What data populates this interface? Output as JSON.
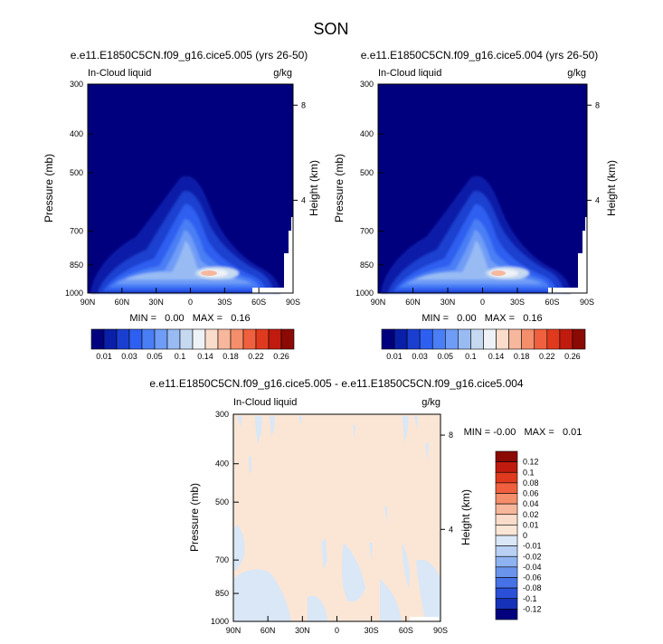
{
  "page": {
    "title": "SON"
  },
  "panels": [
    {
      "title": "e.e11.E1850C5CN.f09_g16.cice5.005 (yrs 26-50)",
      "left_label": "In-Cloud liquid",
      "right_label": "g/kg",
      "stats": "MIN =   0.00   MAX =   0.16",
      "ylabel": "Pressure (mb)",
      "y2label": "Height (km)"
    },
    {
      "title": "e.e11.E1850C5CN.f09_g16.cice5.004 (yrs 26-50)",
      "left_label": "In-Cloud liquid",
      "right_label": "g/kg",
      "stats": "MIN =   0.00   MAX =   0.16",
      "ylabel": "Pressure (mb)",
      "y2label": "Height (km)"
    },
    {
      "title": "e.e11.E1850C5CN.f09_g16.cice5.005 - e.e11.E1850C5CN.f09_g16.cice5.004",
      "left_label": "In-Cloud liquid",
      "right_label": "g/kg",
      "stats": "MIN = -0.00   MAX =   0.01",
      "ylabel": "Pressure (mb)",
      "y2label": "Height (km)"
    }
  ],
  "chart_data": [
    {
      "type": "heatmap",
      "x_ticks": [
        "90N",
        "60N",
        "30N",
        "0",
        "30S",
        "60S",
        "90S"
      ],
      "y_ticks": [
        "300",
        "400",
        "500",
        "700",
        "850",
        "1000"
      ],
      "y_tick_values": [
        300,
        400,
        500,
        700,
        850,
        1000
      ],
      "ylim": [
        300,
        1000
      ],
      "y2_ticks": [
        "8",
        "4"
      ],
      "y2_tick_values": [
        8,
        4
      ],
      "min": 0.0,
      "max": 0.16,
      "colorbar": {
        "orientation": "horizontal",
        "levels": [
          "0.01",
          "0.03",
          "0.05",
          "0.1",
          "0.14",
          "0.18",
          "0.22",
          "0.26"
        ],
        "colors": [
          "#00007f",
          "#0a1fa8",
          "#1a3fd0",
          "#2d5ff0",
          "#4a7ef5",
          "#6f9cf6",
          "#98bbf4",
          "#c5d9f1",
          "#eef2f6",
          "#fadccb",
          "#f7b79c",
          "#f48e6b",
          "#f0603e",
          "#e03a1e",
          "#c01b0e",
          "#8b0a04"
        ]
      }
    },
    {
      "type": "heatmap",
      "x_ticks": [
        "90N",
        "60N",
        "30N",
        "0",
        "30S",
        "60S",
        "90S"
      ],
      "y_ticks": [
        "300",
        "400",
        "500",
        "700",
        "850",
        "1000"
      ],
      "y_tick_values": [
        300,
        400,
        500,
        700,
        850,
        1000
      ],
      "ylim": [
        300,
        1000
      ],
      "y2_ticks": [
        "8",
        "4"
      ],
      "y2_tick_values": [
        8,
        4
      ],
      "min": 0.0,
      "max": 0.16,
      "colorbar": {
        "orientation": "horizontal",
        "levels": [
          "0.01",
          "0.03",
          "0.05",
          "0.1",
          "0.14",
          "0.18",
          "0.22",
          "0.26"
        ],
        "colors": [
          "#00007f",
          "#0a1fa8",
          "#1a3fd0",
          "#2d5ff0",
          "#4a7ef5",
          "#6f9cf6",
          "#98bbf4",
          "#c5d9f1",
          "#eef2f6",
          "#fadccb",
          "#f7b79c",
          "#f48e6b",
          "#f0603e",
          "#e03a1e",
          "#c01b0e",
          "#8b0a04"
        ]
      }
    },
    {
      "type": "heatmap",
      "x_ticks": [
        "90N",
        "60N",
        "30N",
        "0",
        "30S",
        "60S",
        "90S"
      ],
      "y_ticks": [
        "300",
        "400",
        "500",
        "700",
        "850",
        "1000"
      ],
      "y_tick_values": [
        300,
        400,
        500,
        700,
        850,
        1000
      ],
      "ylim": [
        300,
        1000
      ],
      "y2_ticks": [
        "8",
        "4"
      ],
      "y2_tick_values": [
        8,
        4
      ],
      "min": -0.0,
      "max": 0.01,
      "colorbar": {
        "orientation": "vertical",
        "levels": [
          "0.12",
          "0.1",
          "0.08",
          "0.06",
          "0.04",
          "0.02",
          "0.01",
          "0",
          "-0.01",
          "-0.02",
          "-0.04",
          "-0.06",
          "-0.08",
          "-0.1",
          "-0.12"
        ],
        "colors": [
          "#8b0a04",
          "#c01b0e",
          "#e03a1e",
          "#f0603e",
          "#f48e6b",
          "#f7b79c",
          "#fadccb",
          "#fbe6d6",
          "#d9e7f6",
          "#b8d0f3",
          "#8fb3f0",
          "#6a94ec",
          "#4672e6",
          "#2a50d8",
          "#1532b8",
          "#00007f"
        ]
      }
    }
  ]
}
